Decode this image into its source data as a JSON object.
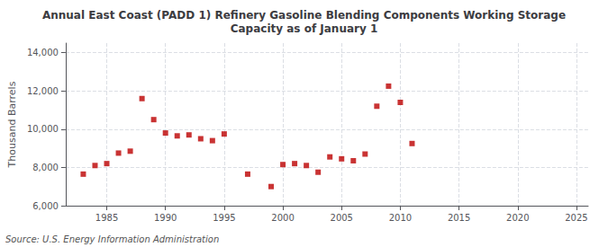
{
  "chart_data": {
    "type": "scatter",
    "title": "Annual East Coast (PADD 1) Refinery Gasoline Blending Components Working Storage\nCapacity as of January 1",
    "ylabel": "Thousand Barrels",
    "annotations": [
      "Source: U.S. Energy Information Administration"
    ],
    "x": [
      1983,
      1984,
      1985,
      1986,
      1987,
      1988,
      1989,
      1990,
      1991,
      1992,
      1993,
      1994,
      1995,
      1997,
      1999,
      2000,
      2001,
      2002,
      2003,
      2004,
      2005,
      2006,
      2007,
      2008,
      2009,
      2010,
      2011
    ],
    "values": [
      7650,
      8100,
      8200,
      8750,
      8850,
      11600,
      10500,
      9800,
      9650,
      9700,
      9500,
      9400,
      9750,
      7650,
      7000,
      8150,
      8200,
      8100,
      7750,
      8550,
      8450,
      8350,
      8700,
      11200,
      12250,
      11400,
      9250
    ],
    "color": "#bb0000",
    "marker": "square",
    "xlim": [
      1981.5,
      2026
    ],
    "xticks": [
      1985,
      1990,
      1995,
      2000,
      2005,
      2010,
      2015,
      2020,
      2025
    ],
    "ylim": [
      6000,
      14500
    ],
    "yticks": [
      {
        "value": 6000,
        "label": "6,000"
      },
      {
        "value": 8000,
        "label": "8,000"
      },
      {
        "value": 10000,
        "label": "10,000"
      },
      {
        "value": 12000,
        "label": "12,000"
      },
      {
        "value": 14000,
        "label": "14,000"
      }
    ],
    "grid": true
  }
}
